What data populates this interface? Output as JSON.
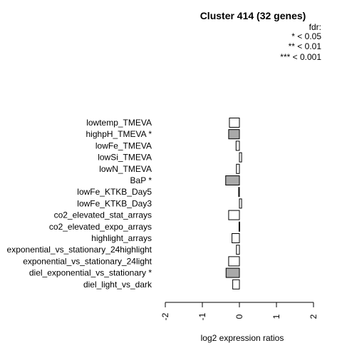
{
  "chart_data": {
    "type": "bar",
    "orientation": "horizontal",
    "title": "Cluster 414 (32 genes)",
    "xlabel": "log2 expression ratios",
    "ylabel": "",
    "xlim": [
      -2,
      2
    ],
    "x_ticks": [
      "-2",
      "-1",
      "0",
      "1",
      "2"
    ],
    "legend": {
      "title": "fdr:",
      "entries": [
        "* < 0.05",
        "** < 0.01",
        "*** < 0.001"
      ],
      "position": "top-right"
    },
    "categories": [
      "lowtemp_TMEVA",
      "highpH_TMEVA *",
      "lowFe_TMEVA",
      "lowSi_TMEVA",
      "lowN_TMEVA",
      "BaP *",
      "lowFe_KTKB_Day5",
      "lowFe_KTKB_Day3",
      "co2_elevated_stat_arrays",
      "co2_elevated_expo_arrays",
      "highlight_arrays",
      "exponential_vs_stationary_24highlight",
      "exponential_vs_stationary_24light",
      "diel_exponential_vs_stationary *",
      "diel_light_vs_dark"
    ],
    "values": [
      -0.27,
      -0.29,
      -0.09,
      0.06,
      -0.08,
      -0.37,
      -0.02,
      0.06,
      -0.29,
      -0.01,
      -0.2,
      -0.08,
      -0.29,
      -0.36,
      -0.18
    ],
    "significant": [
      false,
      true,
      false,
      false,
      false,
      true,
      false,
      false,
      false,
      false,
      false,
      false,
      false,
      true,
      false
    ],
    "colors": {
      "significant": "#a9a9a9",
      "normal": "#ffffff",
      "stroke": "#000000"
    }
  }
}
